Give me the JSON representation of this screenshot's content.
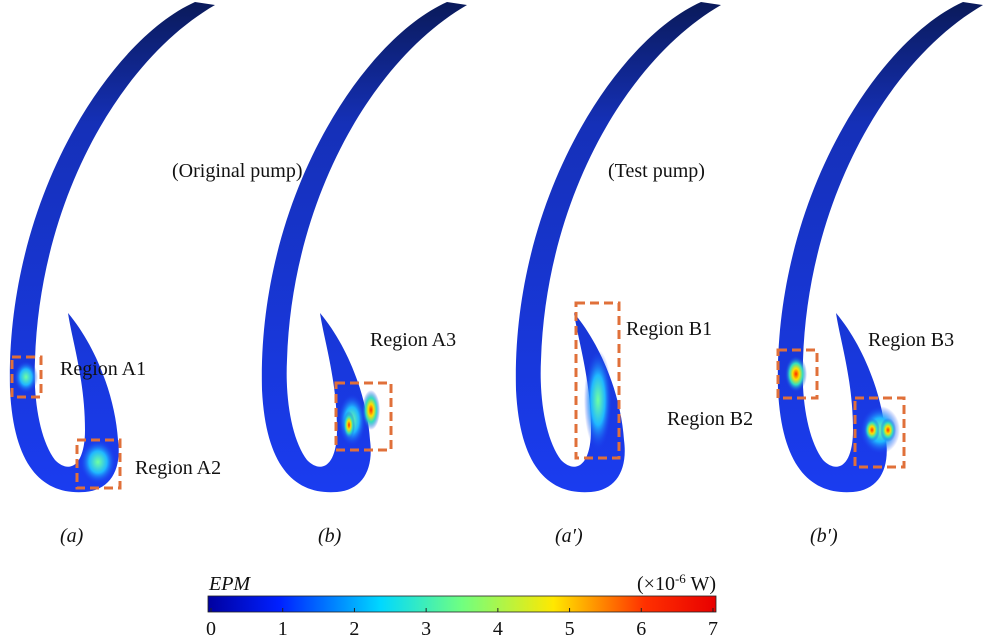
{
  "figure": {
    "headings": [
      "(Original pump)",
      "(Test pump)"
    ],
    "regions": [
      "Region A1",
      "Region A2",
      "Region A3",
      "Region B1",
      "Region B2",
      "Region B3"
    ],
    "panels": [
      "(a)",
      "(b)",
      "(a′)",
      "(b′)"
    ],
    "colorbar": {
      "title": "EPM",
      "unit_prefix": "(×10",
      "unit_exponent": "-6",
      "unit_suffix": " W)",
      "range": [
        0,
        7
      ],
      "ticks": [
        0,
        1,
        2,
        3,
        4,
        5,
        6,
        7
      ]
    }
  }
}
